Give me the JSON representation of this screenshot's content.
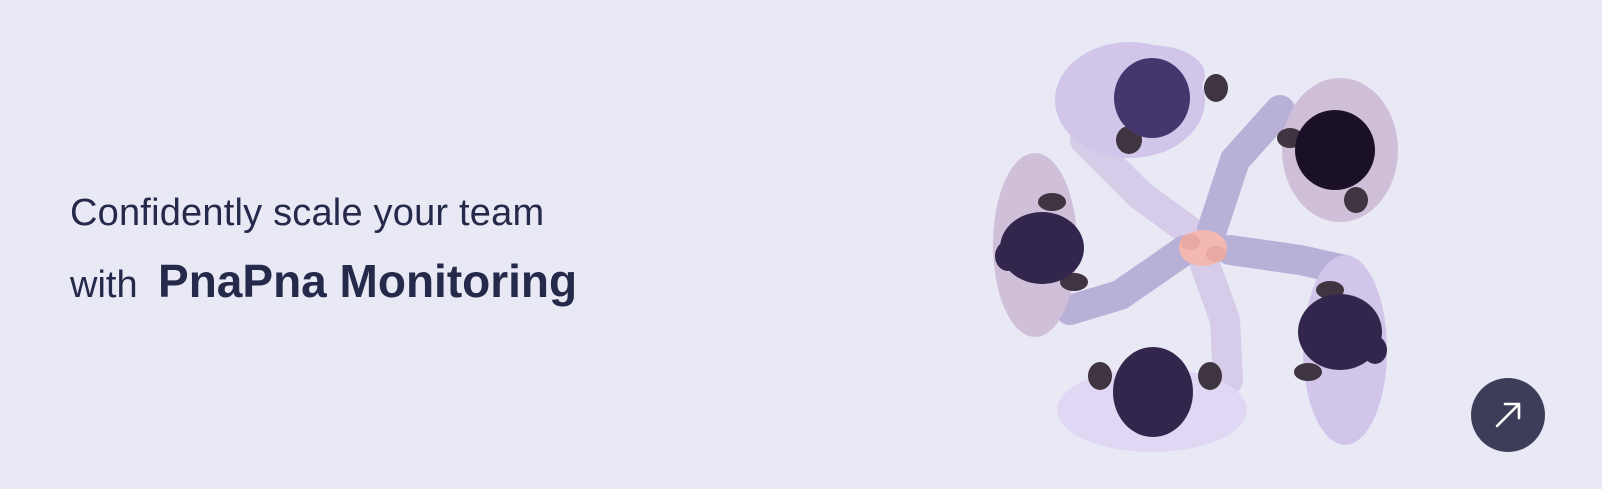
{
  "banner": {
    "headline_line1": "Confidently scale your team",
    "headline_prefix": "with",
    "brand_name": "PnaPna Monitoring"
  },
  "icons": {
    "expand": "arrow-up-right-icon"
  },
  "colors": {
    "background": "#e8e9f5",
    "text": "#25294a",
    "button": "#3d3c59",
    "sleeve": "#cdbfe8",
    "hair_dark": "#33264d"
  }
}
